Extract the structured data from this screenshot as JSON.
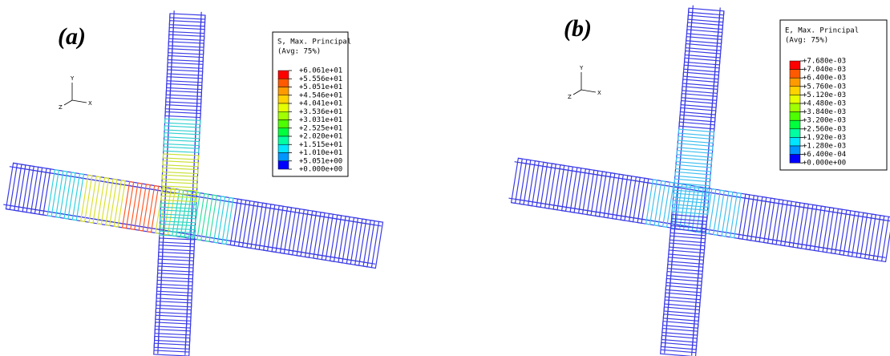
{
  "panels": [
    {
      "label": "(a)",
      "legend": {
        "title": "S, Max. Principal",
        "subtitle": "(Avg: 75%)",
        "entries": [
          "+6.061e+01",
          "+5.556e+01",
          "+5.051e+01",
          "+4.546e+01",
          "+4.041e+01",
          "+3.536e+01",
          "+3.031e+01",
          "+2.525e+01",
          "+2.020e+01",
          "+1.515e+01",
          "+1.010e+01",
          "+5.051e+00",
          "+0.000e+00"
        ]
      },
      "triad": {
        "y": "Y",
        "z": "Z",
        "x": "X"
      }
    },
    {
      "label": "(b)",
      "legend": {
        "title": "E, Max. Principal",
        "subtitle": "(Avg: 75%)",
        "entries": [
          "+7.680e-03",
          "+7.040e-03",
          "+6.400e-03",
          "+5.760e-03",
          "+5.120e-03",
          "+4.480e-03",
          "+3.840e-03",
          "+3.200e-03",
          "+2.560e-03",
          "+1.920e-03",
          "+1.280e-03",
          "+6.400e-04",
          "+0.000e+00"
        ]
      },
      "triad": {
        "y": "Y",
        "z": "Z",
        "x": "X"
      }
    }
  ]
}
